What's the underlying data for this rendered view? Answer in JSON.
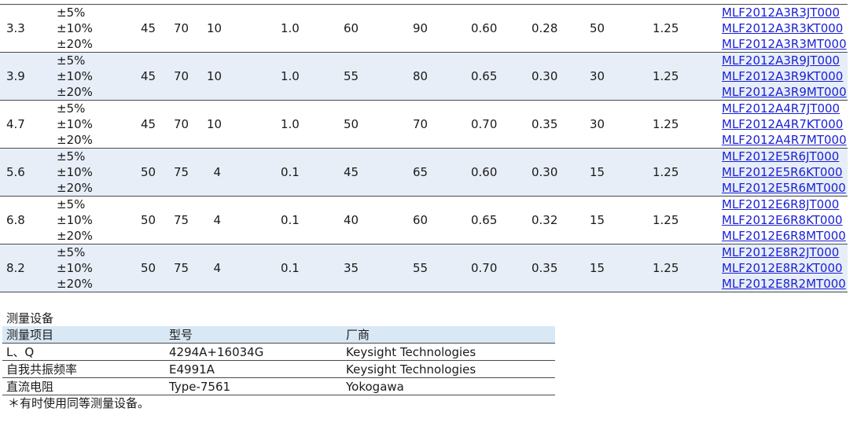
{
  "spec_rows": [
    {
      "l": "3.3",
      "tol": [
        "±5%",
        "±10%",
        "±20%"
      ],
      "q_typ1": "45",
      "q_typ2": "70",
      "freq1": "10",
      "freq2": "1.0",
      "srf1": "60",
      "srf2": "90",
      "rdc1": "0.60",
      "rdc2": "0.28",
      "idc": "50",
      "t": "1.25",
      "parts": [
        "MLF2012A3R3JT000",
        "MLF2012A3R3KT000",
        "MLF2012A3R3MT000"
      ],
      "shaded": false
    },
    {
      "l": "3.9",
      "tol": [
        "±5%",
        "±10%",
        "±20%"
      ],
      "q_typ1": "45",
      "q_typ2": "70",
      "freq1": "10",
      "freq2": "1.0",
      "srf1": "55",
      "srf2": "80",
      "rdc1": "0.65",
      "rdc2": "0.30",
      "idc": "30",
      "t": "1.25",
      "parts": [
        "MLF2012A3R9JT000",
        "MLF2012A3R9KT000",
        "MLF2012A3R9MT000"
      ],
      "shaded": true
    },
    {
      "l": "4.7",
      "tol": [
        "±5%",
        "±10%",
        "±20%"
      ],
      "q_typ1": "45",
      "q_typ2": "70",
      "freq1": "10",
      "freq2": "1.0",
      "srf1": "50",
      "srf2": "70",
      "rdc1": "0.70",
      "rdc2": "0.35",
      "idc": "30",
      "t": "1.25",
      "parts": [
        "MLF2012A4R7JT000",
        "MLF2012A4R7KT000",
        "MLF2012A4R7MT000"
      ],
      "shaded": false
    },
    {
      "l": "5.6",
      "tol": [
        "±5%",
        "±10%",
        "±20%"
      ],
      "q_typ1": "50",
      "q_typ2": "75",
      "freq1": "4",
      "freq2": "0.1",
      "srf1": "45",
      "srf2": "65",
      "rdc1": "0.60",
      "rdc2": "0.30",
      "idc": "15",
      "t": "1.25",
      "parts": [
        "MLF2012E5R6JT000",
        "MLF2012E5R6KT000",
        "MLF2012E5R6MT000"
      ],
      "shaded": true
    },
    {
      "l": "6.8",
      "tol": [
        "±5%",
        "±10%",
        "±20%"
      ],
      "q_typ1": "50",
      "q_typ2": "75",
      "freq1": "4",
      "freq2": "0.1",
      "srf1": "40",
      "srf2": "60",
      "rdc1": "0.65",
      "rdc2": "0.32",
      "idc": "15",
      "t": "1.25",
      "parts": [
        "MLF2012E6R8JT000",
        "MLF2012E6R8KT000",
        "MLF2012E6R8MT000"
      ],
      "shaded": false
    },
    {
      "l": "8.2",
      "tol": [
        "±5%",
        "±10%",
        "±20%"
      ],
      "q_typ1": "50",
      "q_typ2": "75",
      "freq1": "4",
      "freq2": "0.1",
      "srf1": "35",
      "srf2": "55",
      "rdc1": "0.70",
      "rdc2": "0.35",
      "idc": "15",
      "t": "1.25",
      "parts": [
        "MLF2012E8R2JT000",
        "MLF2012E8R2KT000",
        "MLF2012E8R2MT000"
      ],
      "shaded": true
    }
  ],
  "equipment": {
    "title": "测量设备",
    "headers": [
      "测量项目",
      "型号",
      "厂商"
    ],
    "rows": [
      [
        "L、Q",
        "4294A+16034G",
        "Keysight Technologies"
      ],
      [
        "自我共振频率",
        "E4991A",
        "Keysight Technologies"
      ],
      [
        "直流电阻",
        "Type-7561",
        "Yokogawa"
      ]
    ],
    "footnote": "＊有时使用同等测量设备。"
  },
  "colors": {
    "link": "#1a1fd6",
    "row_shade": "#e7eef7",
    "header_shade": "#d8e8f5",
    "rule": "#4a4a4a"
  }
}
